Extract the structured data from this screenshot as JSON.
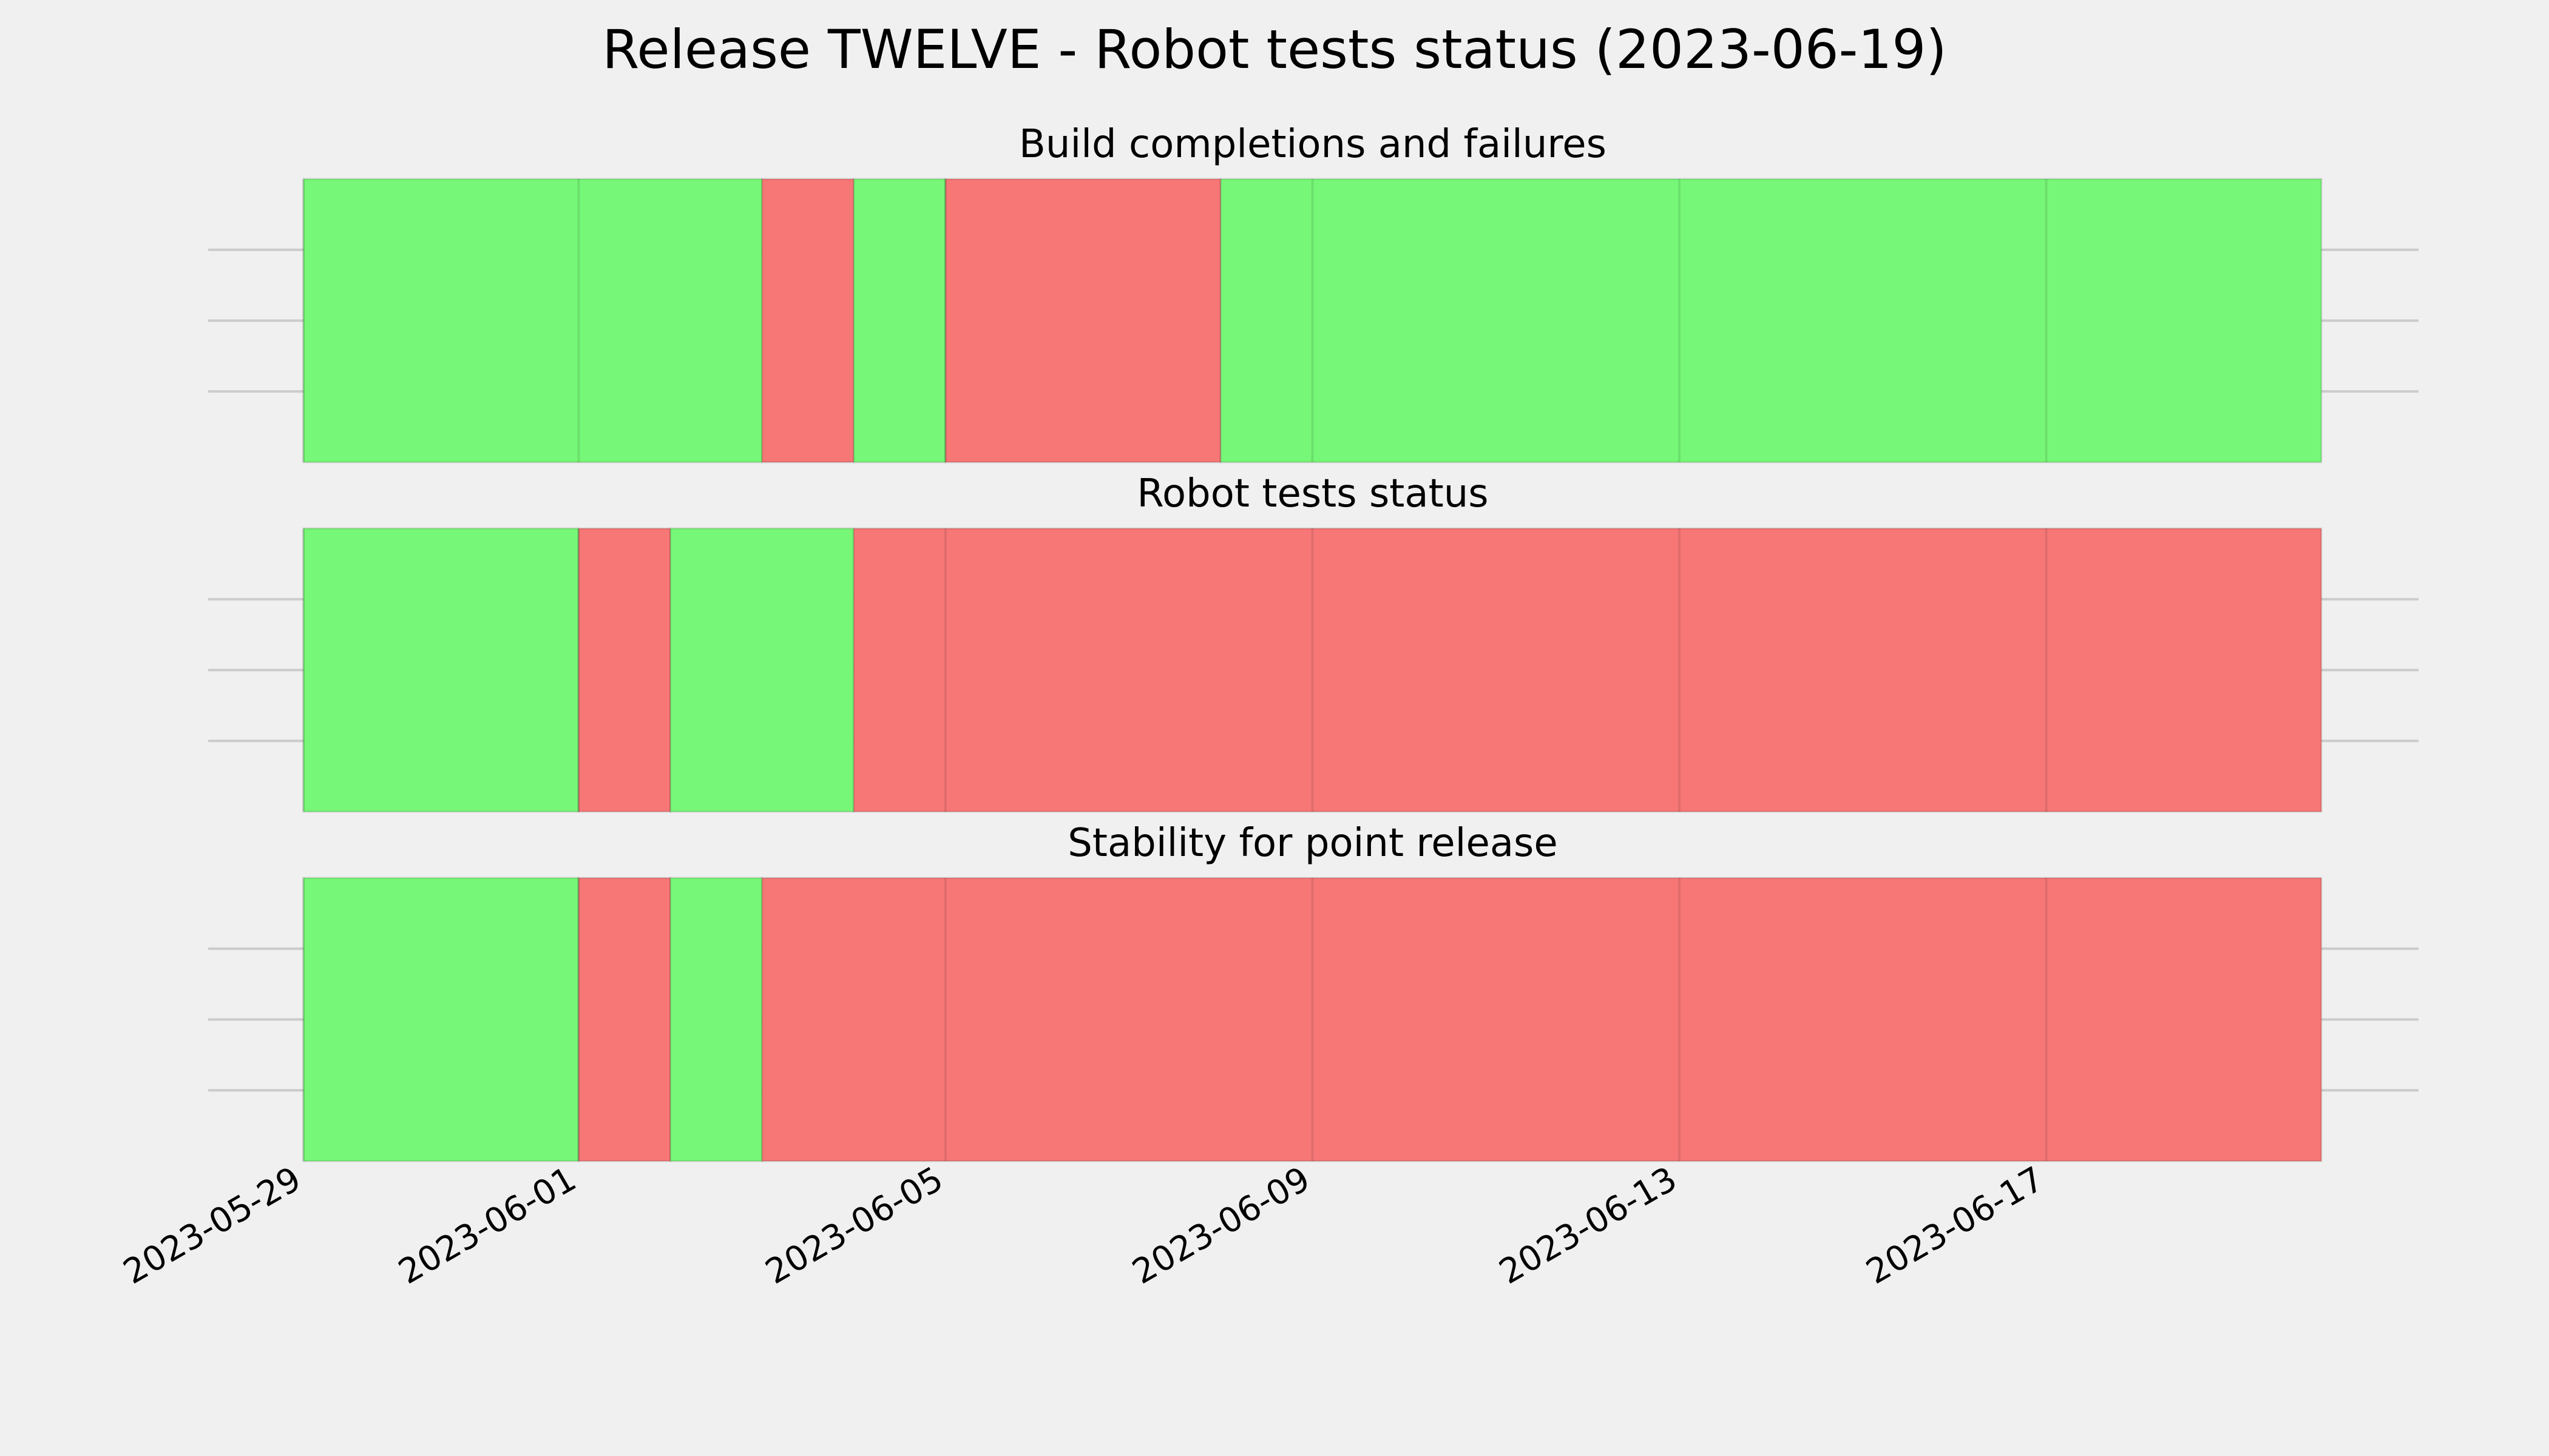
{
  "chart_data": {
    "type": "status-timeline",
    "title": "Release TWELVE - Robot tests status (2023-06-19)",
    "x_ticks": [
      "2023-05-29",
      "2023-06-01",
      "2023-06-05",
      "2023-06-09",
      "2023-06-13",
      "2023-06-17"
    ],
    "xlim": [
      "2023-05-29",
      "2023-06-20"
    ],
    "grid": true,
    "colors": {
      "pass": "#77f777",
      "fail": "#f77777",
      "background": "#f0f0f0"
    },
    "panels": [
      {
        "title": "Build completions and failures",
        "segments": [
          {
            "start": "2023-05-29",
            "end": "2023-06-03",
            "status": "pass"
          },
          {
            "start": "2023-06-03",
            "end": "2023-06-04",
            "status": "fail"
          },
          {
            "start": "2023-06-04",
            "end": "2023-06-05",
            "status": "pass"
          },
          {
            "start": "2023-06-05",
            "end": "2023-06-08",
            "status": "fail"
          },
          {
            "start": "2023-06-08",
            "end": "2023-06-20",
            "status": "pass"
          }
        ]
      },
      {
        "title": "Robot tests status",
        "segments": [
          {
            "start": "2023-05-29",
            "end": "2023-06-01",
            "status": "pass"
          },
          {
            "start": "2023-06-01",
            "end": "2023-06-02",
            "status": "fail"
          },
          {
            "start": "2023-06-02",
            "end": "2023-06-04",
            "status": "pass"
          },
          {
            "start": "2023-06-04",
            "end": "2023-06-20",
            "status": "fail"
          }
        ]
      },
      {
        "title": "Stability for point release",
        "segments": [
          {
            "start": "2023-05-29",
            "end": "2023-06-01",
            "status": "pass"
          },
          {
            "start": "2023-06-01",
            "end": "2023-06-02",
            "status": "fail"
          },
          {
            "start": "2023-06-02",
            "end": "2023-06-03",
            "status": "pass"
          },
          {
            "start": "2023-06-03",
            "end": "2023-06-20",
            "status": "fail"
          }
        ]
      }
    ]
  }
}
